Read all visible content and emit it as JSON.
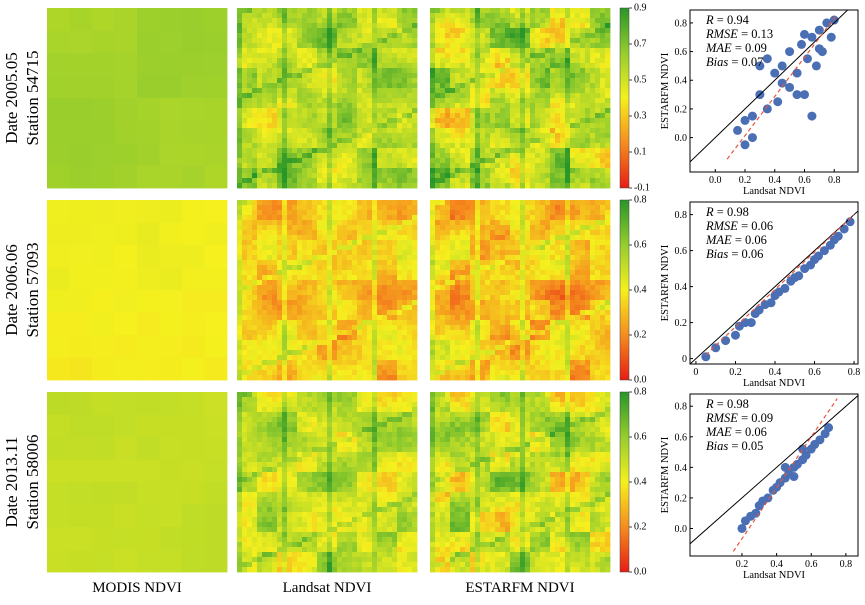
{
  "column_labels": [
    "MODIS NDVI",
    "Landsat NDVI",
    "ESTARFM NDVI"
  ],
  "rows": [
    {
      "date": "Date 2005.05",
      "station": "Station 54715",
      "colorbar": {
        "lim": [
          -0.1,
          0.9
        ],
        "ticks": [
          0.9,
          0.7,
          0.5,
          0.3,
          0.1,
          -0.1
        ]
      },
      "scatter": {
        "type": "scatter",
        "xlabel": "Landsat NDVI",
        "ylabel": "ESTARFM NDVI",
        "stats": [
          {
            "name": "R",
            "value": "= 0.94"
          },
          {
            "name": "RMSE",
            "value": "= 0.13"
          },
          {
            "name": "MAE",
            "value": "= 0.09"
          },
          {
            "name": "Bias",
            "value": "= 0.07"
          }
        ],
        "xlim": [
          -0.17,
          0.96
        ],
        "ylim": [
          -0.24,
          0.89
        ],
        "xticks": [
          {
            "value": 0,
            "label": "0.0"
          },
          0.2,
          0.4,
          0.6,
          0.8
        ],
        "yticks": [
          {
            "value": 0,
            "label": "0.0"
          },
          0.2,
          0.4,
          0.6,
          0.8
        ],
        "color": "#4a6fb5",
        "x": [
          0.15,
          0.2,
          0.25,
          0.3,
          0.35,
          0.4,
          0.42,
          0.45,
          0.5,
          0.5,
          0.55,
          0.58,
          0.6,
          0.62,
          0.65,
          0.68,
          0.7,
          0.72,
          0.75,
          0.78,
          0.8,
          0.3,
          0.35,
          0.2,
          0.65,
          0.55,
          0.45,
          0.25,
          0.6,
          0.7
        ],
        "y": [
          0.05,
          0.12,
          0.0,
          0.3,
          0.2,
          0.45,
          0.25,
          0.5,
          0.35,
          0.6,
          0.45,
          0.65,
          0.3,
          0.55,
          0.7,
          0.5,
          0.75,
          0.6,
          0.8,
          0.7,
          0.82,
          0.5,
          0.55,
          -0.05,
          0.15,
          0.3,
          0.38,
          0.15,
          0.72,
          0.62
        ],
        "fit": {
          "color": "#e8553d",
          "x": [
            0.08,
            0.82
          ],
          "y": [
            -0.15,
            0.86
          ]
        }
      }
    },
    {
      "date": "Date 2006.06",
      "station": "Station 57093",
      "colorbar": {
        "lim": [
          0,
          0.8
        ],
        "ticks": [
          0.8,
          0.6,
          0.4,
          0.2,
          {
            "value": 0,
            "label": "0.0"
          }
        ]
      },
      "scatter": {
        "type": "scatter",
        "xlabel": "Landsat NDVI",
        "ylabel": "ESTARFM NDVI",
        "stats": [
          {
            "name": "R",
            "value": "= 0.98"
          },
          {
            "name": "RMSE",
            "value": "= 0.06"
          },
          {
            "name": "MAE",
            "value": "= 0.06"
          },
          {
            "name": "Bias",
            "value": "= 0.06"
          }
        ],
        "xlim": [
          -0.03,
          0.82
        ],
        "ylim": [
          -0.03,
          0.87
        ],
        "xticks": [
          0,
          0.2,
          0.4,
          0.6,
          0.8
        ],
        "yticks": [
          0,
          0.2,
          0.4,
          0.6,
          0.8
        ],
        "color": "#4a6fb5",
        "x": [
          0.05,
          0.1,
          0.15,
          0.2,
          0.22,
          0.25,
          0.28,
          0.3,
          0.32,
          0.35,
          0.38,
          0.4,
          0.42,
          0.45,
          0.48,
          0.5,
          0.52,
          0.55,
          0.58,
          0.6,
          0.62,
          0.65,
          0.68,
          0.7,
          0.72,
          0.75,
          0.78
        ],
        "y": [
          0.01,
          0.06,
          0.1,
          0.13,
          0.18,
          0.2,
          0.2,
          0.25,
          0.27,
          0.3,
          0.31,
          0.35,
          0.37,
          0.39,
          0.43,
          0.45,
          0.46,
          0.5,
          0.52,
          0.55,
          0.57,
          0.6,
          0.63,
          0.66,
          0.68,
          0.72,
          0.76
        ],
        "fit": {
          "color": "#e8553d",
          "x": [
            0.05,
            0.8
          ],
          "y": [
            0.02,
            0.8
          ]
        }
      }
    },
    {
      "date": "Date 2013.11",
      "station": "Station 58006",
      "colorbar": {
        "lim": [
          0,
          0.8
        ],
        "ticks": [
          0.8,
          0.6,
          0.4,
          0.2,
          {
            "value": 0,
            "label": "0.0"
          }
        ]
      },
      "scatter": {
        "type": "scatter",
        "xlabel": "Landsat NDVI",
        "ylabel": "ESTARFM NDVI",
        "stats": [
          {
            "name": "R",
            "value": "= 0.98"
          },
          {
            "name": "RMSE",
            "value": "= 0.09"
          },
          {
            "name": "MAE",
            "value": "= 0.06"
          },
          {
            "name": "Bias",
            "value": "= 0.05"
          }
        ],
        "xlim": [
          -0.1,
          0.87
        ],
        "ylim": [
          -0.18,
          0.88
        ],
        "xticks": [
          0.2,
          0.4,
          0.6,
          0.8
        ],
        "yticks": [
          {
            "value": 0,
            "label": "0.0"
          },
          0.2,
          0.4,
          0.6,
          0.8
        ],
        "color": "#4a6fb5",
        "x": [
          0.2,
          0.22,
          0.25,
          0.28,
          0.3,
          0.32,
          0.35,
          0.38,
          0.4,
          0.42,
          0.45,
          0.47,
          0.5,
          0.52,
          0.55,
          0.57,
          0.6,
          0.62,
          0.65,
          0.68,
          0.7,
          0.45,
          0.5,
          0.55
        ],
        "y": [
          0.0,
          0.05,
          0.08,
          0.1,
          0.15,
          0.18,
          0.2,
          0.25,
          0.27,
          0.3,
          0.33,
          0.36,
          0.4,
          0.42,
          0.45,
          0.48,
          0.52,
          0.55,
          0.58,
          0.62,
          0.66,
          0.4,
          0.34,
          0.52
        ],
        "fit": {
          "color": "#e8553d",
          "x": [
            0.15,
            0.75
          ],
          "y": [
            -0.15,
            0.85
          ]
        }
      }
    }
  ]
}
